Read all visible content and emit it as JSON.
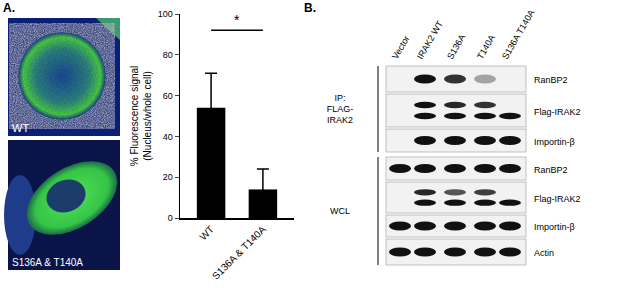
{
  "panel_labels": [
    "A.",
    "B."
  ],
  "microscopy": {
    "images": [
      {
        "label": "WT"
      },
      {
        "label": "S136A & T140A"
      }
    ]
  },
  "chart_data": {
    "type": "bar",
    "categories": [
      "WT",
      "S136A & T140A"
    ],
    "values": [
      54,
      14
    ],
    "errors": [
      17,
      10
    ],
    "color": "#000000",
    "y_label": "% Fluorescence signal\n(Nucleus/whole cell)",
    "ylim": [
      0,
      100
    ],
    "yticks": [
      0,
      20,
      40,
      60,
      80,
      100
    ],
    "grid": false,
    "annotations": [
      {
        "text": "*",
        "from": "WT",
        "to": "S136A & T140A",
        "y": 92
      }
    ]
  },
  "blot": {
    "lanes": [
      "Vector",
      "IRAK2 WT",
      "S136A",
      "T140A",
      "S136A T140A"
    ],
    "groups": [
      {
        "label": "IP:\nFLAG-\nIRAK2",
        "rows": [
          {
            "label": "RanBP2",
            "bands": [
              [
                0,
                1,
                0.85,
                0.35,
                0
              ]
            ]
          },
          {
            "label": "Flag-IRAK2",
            "bands": [
              [
                0,
                1,
                0.9,
                0.85,
                0
              ],
              [
                0,
                1,
                1,
                1,
                1
              ]
            ]
          },
          {
            "label": "Importin-β",
            "bands": [
              [
                0,
                1,
                1,
                1,
                1
              ]
            ]
          }
        ]
      },
      {
        "label": "WCL",
        "rows": [
          {
            "label": "RanBP2",
            "bands": [
              [
                1,
                1,
                1,
                1,
                1
              ]
            ]
          },
          {
            "label": "Flag-IRAK2",
            "bands": [
              [
                0,
                0.9,
                0.7,
                0.8,
                0
              ],
              [
                0,
                1,
                1,
                1,
                1
              ]
            ]
          },
          {
            "label": "Importin-β",
            "bands": [
              [
                1,
                1,
                1,
                1,
                1
              ]
            ]
          },
          {
            "label": "Actin",
            "bands": [
              [
                1,
                1,
                1,
                1,
                1
              ]
            ]
          }
        ]
      }
    ]
  }
}
